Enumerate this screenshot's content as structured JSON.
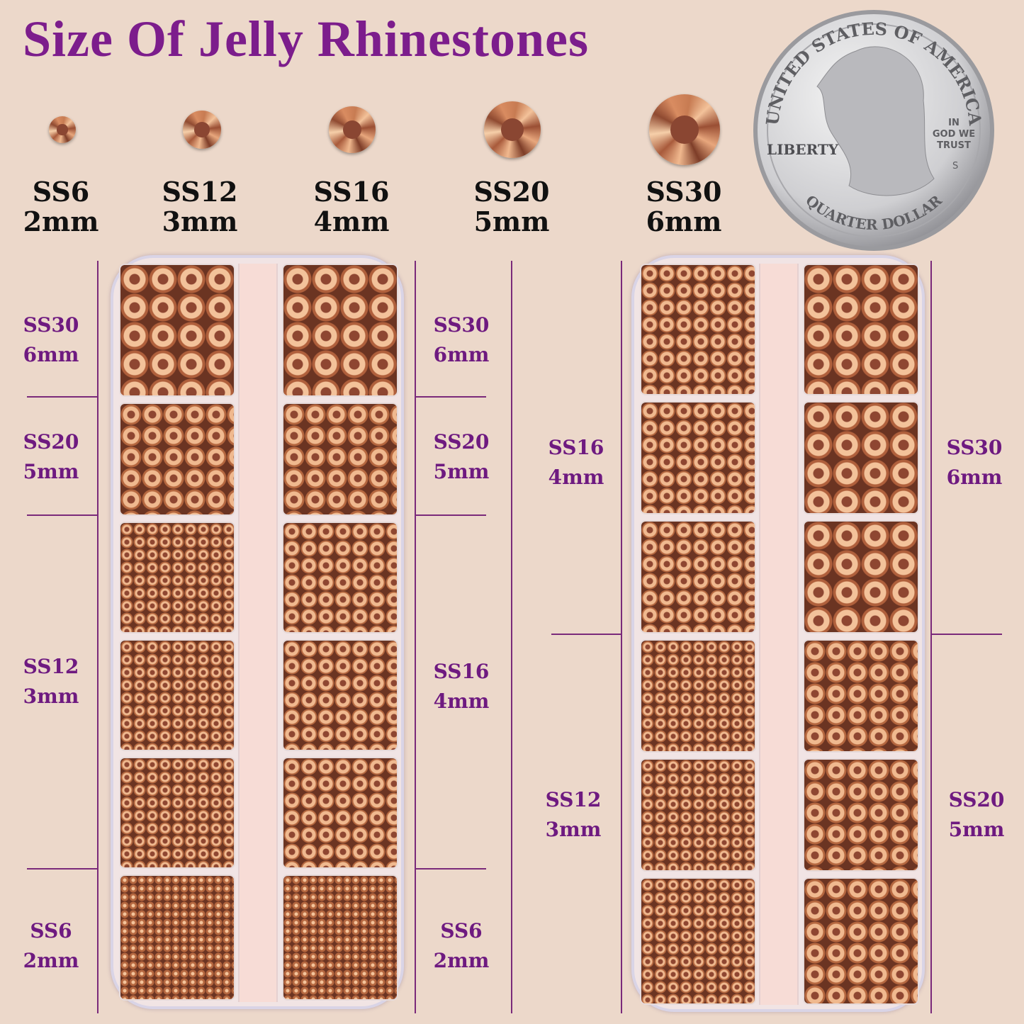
{
  "title": "Size Of Jelly Rhinestones",
  "colors": {
    "title": "#7c1d8c",
    "label": "#6e1a80",
    "background": "#ecd8ca",
    "stone": "#c77b52"
  },
  "sizes": [
    {
      "code": "SS6",
      "mm": "2mm"
    },
    {
      "code": "SS12",
      "mm": "3mm"
    },
    {
      "code": "SS16",
      "mm": "4mm"
    },
    {
      "code": "SS20",
      "mm": "5mm"
    },
    {
      "code": "SS30",
      "mm": "6mm"
    }
  ],
  "coin": {
    "top": "UNITED STATES OF AMERICA",
    "liberty": "LIBERTY",
    "motto1": "IN",
    "motto2": "GOD WE",
    "motto3": "TRUST",
    "mint": "S",
    "bottom": "QUARTER DOLLAR"
  },
  "box1": {
    "left_labels": [
      {
        "code": "SS30",
        "mm": "6mm"
      },
      {
        "code": "SS20",
        "mm": "5mm"
      },
      {
        "code": "SS12",
        "mm": "3mm"
      },
      {
        "code": "SS6",
        "mm": "2mm"
      }
    ],
    "right_labels": [
      {
        "code": "SS30",
        "mm": "6mm"
      },
      {
        "code": "SS20",
        "mm": "5mm"
      },
      {
        "code": "SS16",
        "mm": "4mm"
      },
      {
        "code": "SS6",
        "mm": "2mm"
      }
    ]
  },
  "box2": {
    "left_labels": [
      {
        "code": "SS16",
        "mm": "4mm"
      },
      {
        "code": "SS12",
        "mm": "3mm"
      }
    ],
    "right_labels": [
      {
        "code": "SS30",
        "mm": "6mm"
      },
      {
        "code": "SS20",
        "mm": "5mm"
      }
    ]
  }
}
